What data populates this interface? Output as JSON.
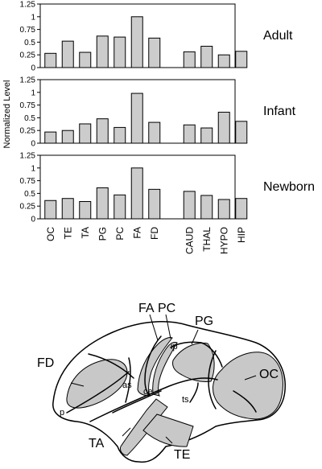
{
  "ylabel": "Normalized Level",
  "categories": [
    "OC",
    "TE",
    "TA",
    "PG",
    "PC",
    "FA",
    "FD",
    "CAUD",
    "THAL",
    "HYPO",
    "HIP"
  ],
  "ticks": [
    "0",
    "0.25",
    "0.5",
    "0.75",
    "1",
    "1.25"
  ],
  "chart_data": [
    {
      "type": "bar",
      "title": "Adult",
      "categories": [
        "OC",
        "TE",
        "TA",
        "PG",
        "PC",
        "FA",
        "FD",
        "CAUD",
        "THAL",
        "HYPO",
        "HIP"
      ],
      "values": [
        0.28,
        0.52,
        0.3,
        0.62,
        0.6,
        1.0,
        0.58,
        0.31,
        0.42,
        0.25,
        0.32
      ],
      "xlabel": "",
      "ylabel": "Normalized Level",
      "ylim": [
        0,
        1.25
      ],
      "grid": false
    },
    {
      "type": "bar",
      "title": "Infant",
      "categories": [
        "OC",
        "TE",
        "TA",
        "PG",
        "PC",
        "FA",
        "FD",
        "CAUD",
        "THAL",
        "HYPO",
        "HIP"
      ],
      "values": [
        0.22,
        0.25,
        0.38,
        0.48,
        0.31,
        0.98,
        0.41,
        0.36,
        0.3,
        0.61,
        0.43
      ],
      "xlabel": "",
      "ylabel": "Normalized Level",
      "ylim": [
        0,
        1.25
      ],
      "grid": false
    },
    {
      "type": "bar",
      "title": "Newborn",
      "categories": [
        "OC",
        "TE",
        "TA",
        "PG",
        "PC",
        "FA",
        "FD",
        "CAUD",
        "THAL",
        "HYPO",
        "HIP"
      ],
      "values": [
        0.36,
        0.4,
        0.34,
        0.61,
        0.47,
        1.0,
        0.58,
        0.54,
        0.46,
        0.38,
        0.4
      ],
      "xlabel": "",
      "ylabel": "Normalized Level",
      "ylim": [
        0,
        1.25
      ],
      "grid": false
    }
  ],
  "colors": {
    "bar_fill": "#cccccc",
    "stroke": "#000000",
    "region_fill": "#c8c8c8"
  },
  "brain_labels": {
    "FA": "FA",
    "PC": "PC",
    "PG": "PG",
    "FD": "FD",
    "OC": "OC",
    "TA": "TA",
    "TE": "TE",
    "ip": "ip",
    "as": "as",
    "ce": "ce",
    "ts": "ts",
    "p": "p"
  }
}
